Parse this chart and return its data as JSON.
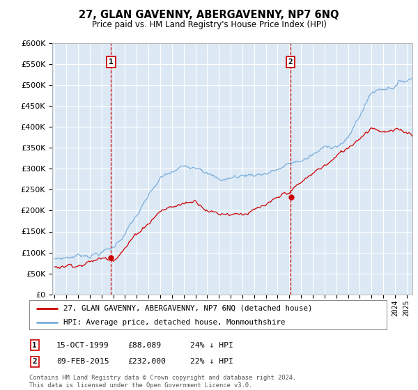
{
  "title": "27, GLAN GAVENNY, ABERGAVENNY, NP7 6NQ",
  "subtitle": "Price paid vs. HM Land Registry's House Price Index (HPI)",
  "bg_color": "#dce9f5",
  "grid_color": "#ffffff",
  "red_color": "#cc0000",
  "blue_color": "#7aaddb",
  "vline_color": "#cc0000",
  "marker1_year": 1999.79,
  "marker2_year": 2015.1,
  "marker1_val_red": 88089,
  "marker2_val_red": 232000,
  "marker1_label": "1",
  "marker2_label": "2",
  "annotation1_date": "15-OCT-1999",
  "annotation1_price": "£88,089",
  "annotation1_hpi": "24% ↓ HPI",
  "annotation2_date": "09-FEB-2015",
  "annotation2_price": "£232,000",
  "annotation2_hpi": "22% ↓ HPI",
  "legend_line1": "27, GLAN GAVENNY, ABERGAVENNY, NP7 6NQ (detached house)",
  "legend_line2": "HPI: Average price, detached house, Monmouthshire",
  "footer": "Contains HM Land Registry data © Crown copyright and database right 2024.\nThis data is licensed under the Open Government Licence v3.0.",
  "ylim": [
    0,
    600000
  ],
  "ytick_step": 50000,
  "xlim_start": 1994.8,
  "xlim_end": 2025.5
}
